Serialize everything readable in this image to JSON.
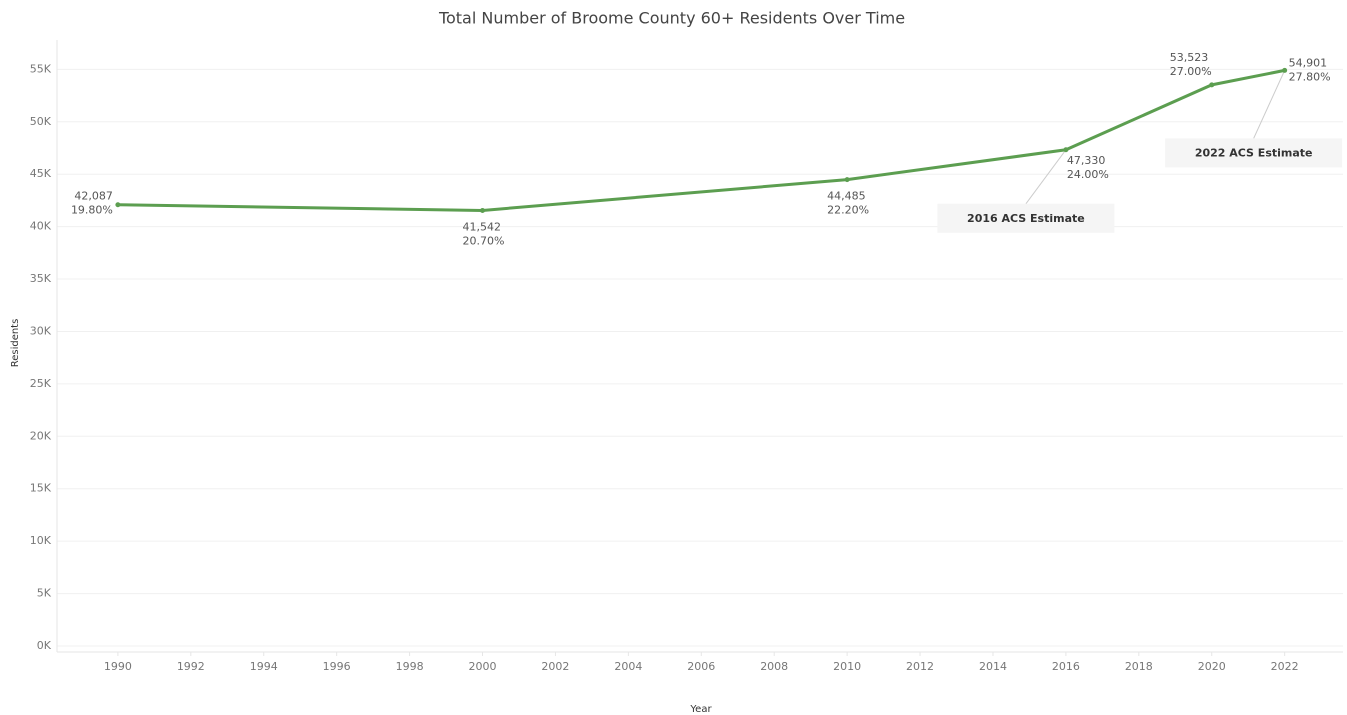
{
  "chart_data": {
    "type": "line",
    "title": "Total Number of Broome County 60+ Residents Over Time",
    "x_label": "Year",
    "y_label": "Residents",
    "x": [
      1990,
      2000,
      2010,
      2016,
      2020,
      2022
    ],
    "series": [
      {
        "name": "Residents",
        "color": "#5c9e50",
        "values": [
          42087,
          41542,
          44485,
          47330,
          53523,
          54901
        ],
        "value_labels": [
          "42,087",
          "41,542",
          "44,485",
          "47,330",
          "53,523",
          "54,901"
        ],
        "shares": [
          19.8,
          20.7,
          22.2,
          24.0,
          27.0,
          27.8
        ],
        "share_labels": [
          "19.80%",
          "20.70%",
          "22.20%",
          "24.00%",
          "27.00%",
          "27.80%"
        ]
      }
    ],
    "annotations": [
      {
        "text": "2016 ACS Estimate",
        "x": 2016
      },
      {
        "text": "2022 ACS Estimate",
        "x": 2022
      }
    ],
    "xlim": [
      1988.33,
      2023.6
    ],
    "xticks": [
      1990,
      1992,
      1994,
      1996,
      1998,
      2000,
      2002,
      2004,
      2006,
      2008,
      2010,
      2012,
      2014,
      2016,
      2018,
      2020,
      2022
    ],
    "ylim": [
      0,
      57800
    ],
    "yticks": [
      {
        "value": 0,
        "label": "0K"
      },
      {
        "value": 5000,
        "label": "5K"
      },
      {
        "value": 10000,
        "label": "10K"
      },
      {
        "value": 15000,
        "label": "15K"
      },
      {
        "value": 20000,
        "label": "20K"
      },
      {
        "value": 25000,
        "label": "25K"
      },
      {
        "value": 30000,
        "label": "30K"
      },
      {
        "value": 35000,
        "label": "35K"
      },
      {
        "value": 40000,
        "label": "40K"
      },
      {
        "value": 45000,
        "label": "45K"
      },
      {
        "value": 50000,
        "label": "50K"
      },
      {
        "value": 55000,
        "label": "55K"
      }
    ],
    "grid": true
  }
}
